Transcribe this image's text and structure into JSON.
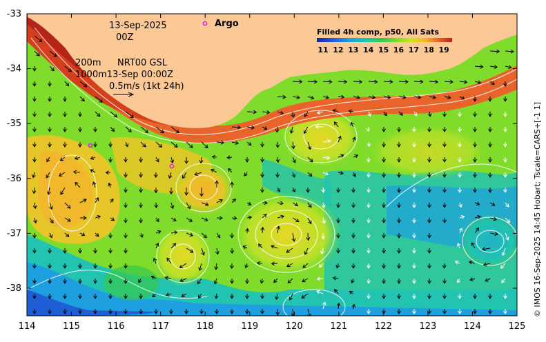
{
  "map": {
    "date": "13-Sep-2025",
    "hour": "00Z",
    "depth_line_1": "200m",
    "source_line": "NRT00 GSL",
    "depth_line_2": "1000m13-Sep 00:00Z",
    "scale_arrow_label": "0.5m/s (1kt 24h)",
    "argo_label": "Argo",
    "credit": "© IMOS 16-Sep-2025 14:45 Hobart; Tscale=CARS+[-1 1]",
    "colorbar": {
      "title": "Filled 4h comp, p50, All Sats",
      "labels": [
        "11",
        "12",
        "13",
        "14",
        "15",
        "16",
        "17",
        "18",
        "19"
      ],
      "colors": [
        "#1b1f9a",
        "#1e5fd6",
        "#1e9fe0",
        "#22c3b0",
        "#36c850",
        "#7fdc2a",
        "#cfe51e",
        "#f2b42a",
        "#e8642a",
        "#b52418"
      ]
    },
    "x_ticks": [
      "114",
      "115",
      "116",
      "117",
      "118",
      "119",
      "120",
      "121",
      "122",
      "123",
      "124",
      "125"
    ],
    "y_ticks": [
      "-33",
      "-34",
      "-35",
      "-36",
      "-37",
      "-38"
    ],
    "colors": {
      "land": "#fcc896",
      "frame": "#000000"
    }
  }
}
